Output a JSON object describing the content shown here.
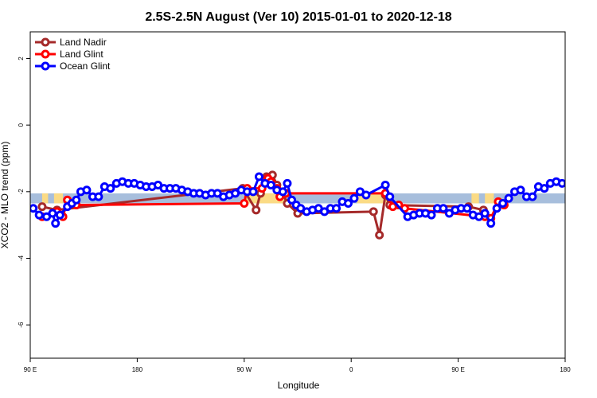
{
  "chart_data": {
    "type": "line",
    "title": "2.5S-2.5N August (Ver 10)   2015-01-01 to 2020-12-18",
    "xlabel": "Longitude",
    "ylabel": "XCO2 - MLO trend (ppm)",
    "xlim": [
      0,
      360
    ],
    "ylim": [
      -7.0,
      2.8
    ],
    "x_ticks": [
      {
        "value": 0,
        "label": "90 E"
      },
      {
        "value": 72,
        "label": "180"
      },
      {
        "value": 144,
        "label": "90 W"
      },
      {
        "value": 216,
        "label": "0"
      },
      {
        "value": 288,
        "label": "90 E"
      },
      {
        "value": 360,
        "label": "180"
      }
    ],
    "y_ticks": [
      {
        "value": 2,
        "label": "2"
      },
      {
        "value": 0,
        "label": "0"
      },
      {
        "value": -2,
        "label": "-2"
      },
      {
        "value": -4,
        "label": "-4"
      },
      {
        "value": -6,
        "label": "-6"
      }
    ],
    "band": {
      "y_low": -2.35,
      "y_high": -2.05,
      "color": "#a7bedc",
      "land_color": "#fbdb85"
    },
    "land_segments": [
      [
        8,
        12
      ],
      [
        16,
        22
      ],
      [
        144,
        172
      ],
      [
        220,
        242
      ],
      [
        297,
        302
      ],
      [
        306,
        312
      ]
    ],
    "legend_position": "top-left",
    "series": [
      {
        "name": "Land Nadir",
        "color": "#a52a2a",
        "points": [
          [
            8,
            -2.45
          ],
          [
            18,
            -2.55
          ],
          [
            143,
            -1.9
          ],
          [
            152,
            -2.55
          ],
          [
            155,
            -2.05
          ],
          [
            159,
            -1.55
          ],
          [
            163,
            -1.5
          ],
          [
            166,
            -1.8
          ],
          [
            170,
            -2.05
          ],
          [
            173,
            -2.35
          ],
          [
            180,
            -2.65
          ],
          [
            231,
            -2.6
          ],
          [
            235,
            -3.3
          ],
          [
            239,
            -2.1
          ],
          [
            242,
            -2.4
          ],
          [
            295,
            -2.45
          ],
          [
            305,
            -2.55
          ]
        ]
      },
      {
        "name": "Land Glint",
        "color": "#ff0000",
        "points": [
          [
            8,
            -2.75
          ],
          [
            18,
            -2.6
          ],
          [
            22,
            -2.75
          ],
          [
            25,
            -2.25
          ],
          [
            31,
            -2.4
          ],
          [
            144,
            -2.35
          ],
          [
            146,
            -1.9
          ],
          [
            156,
            -1.9
          ],
          [
            160,
            -1.6
          ],
          [
            162,
            -1.7
          ],
          [
            166,
            -1.9
          ],
          [
            168,
            -2.15
          ],
          [
            172,
            -2.05
          ],
          [
            239,
            -2.05
          ],
          [
            244,
            -2.45
          ],
          [
            248,
            -2.4
          ],
          [
            252,
            -2.5
          ],
          [
            306,
            -2.75
          ],
          [
            310,
            -2.8
          ],
          [
            315,
            -2.3
          ],
          [
            319,
            -2.4
          ]
        ]
      },
      {
        "name": "Ocean Glint",
        "color": "#0000ff",
        "points": [
          [
            2,
            -2.5
          ],
          [
            6,
            -2.7
          ],
          [
            11,
            -2.75
          ],
          [
            15,
            -2.65
          ],
          [
            17,
            -2.95
          ],
          [
            20,
            -2.7
          ],
          [
            25,
            -2.45
          ],
          [
            28,
            -2.35
          ],
          [
            31,
            -2.25
          ],
          [
            34,
            -2.0
          ],
          [
            38,
            -1.95
          ],
          [
            42,
            -2.15
          ],
          [
            46,
            -2.15
          ],
          [
            50,
            -1.85
          ],
          [
            54,
            -1.9
          ],
          [
            58,
            -1.75
          ],
          [
            62,
            -1.7
          ],
          [
            66,
            -1.75
          ],
          [
            70,
            -1.75
          ],
          [
            74,
            -1.8
          ],
          [
            78,
            -1.85
          ],
          [
            82,
            -1.85
          ],
          [
            86,
            -1.8
          ],
          [
            90,
            -1.9
          ],
          [
            94,
            -1.9
          ],
          [
            98,
            -1.9
          ],
          [
            102,
            -1.95
          ],
          [
            106,
            -2.0
          ],
          [
            110,
            -2.05
          ],
          [
            114,
            -2.05
          ],
          [
            118,
            -2.1
          ],
          [
            122,
            -2.05
          ],
          [
            126,
            -2.05
          ],
          [
            130,
            -2.15
          ],
          [
            134,
            -2.1
          ],
          [
            138,
            -2.05
          ],
          [
            142,
            -1.95
          ],
          [
            146,
            -2.0
          ],
          [
            150,
            -2.0
          ],
          [
            154,
            -1.55
          ],
          [
            158,
            -1.75
          ],
          [
            162,
            -1.8
          ],
          [
            166,
            -1.95
          ],
          [
            170,
            -2.0
          ],
          [
            173,
            -1.75
          ],
          [
            176,
            -2.25
          ],
          [
            179,
            -2.4
          ],
          [
            182,
            -2.5
          ],
          [
            186,
            -2.6
          ],
          [
            190,
            -2.55
          ],
          [
            194,
            -2.5
          ],
          [
            198,
            -2.6
          ],
          [
            202,
            -2.5
          ],
          [
            206,
            -2.5
          ],
          [
            210,
            -2.3
          ],
          [
            214,
            -2.35
          ],
          [
            218,
            -2.2
          ],
          [
            222,
            -2.0
          ],
          [
            226,
            -2.1
          ],
          [
            239,
            -1.8
          ],
          [
            242,
            -2.15
          ],
          [
            254,
            -2.75
          ],
          [
            258,
            -2.7
          ],
          [
            262,
            -2.65
          ],
          [
            266,
            -2.65
          ],
          [
            270,
            -2.7
          ],
          [
            274,
            -2.5
          ],
          [
            278,
            -2.5
          ],
          [
            282,
            -2.65
          ],
          [
            286,
            -2.55
          ],
          [
            290,
            -2.5
          ],
          [
            294,
            -2.5
          ],
          [
            298,
            -2.7
          ],
          [
            302,
            -2.75
          ],
          [
            306,
            -2.65
          ],
          [
            310,
            -2.95
          ],
          [
            314,
            -2.5
          ],
          [
            318,
            -2.35
          ],
          [
            322,
            -2.2
          ],
          [
            326,
            -2.0
          ],
          [
            330,
            -1.95
          ],
          [
            334,
            -2.15
          ],
          [
            338,
            -2.15
          ],
          [
            342,
            -1.85
          ],
          [
            346,
            -1.9
          ],
          [
            350,
            -1.75
          ],
          [
            354,
            -1.7
          ],
          [
            358,
            -1.75
          ],
          [
            362,
            -1.75
          ]
        ]
      }
    ]
  }
}
